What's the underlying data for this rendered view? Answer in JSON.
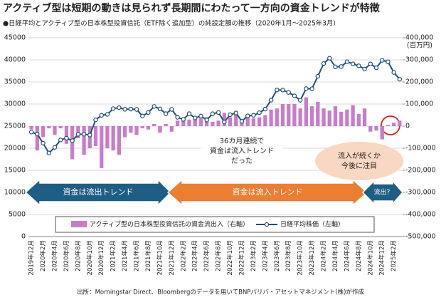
{
  "chart_data": {
    "type": "bar",
    "title": "アクティブ型は短期の動きは見られず長期間にわたって一方向の資金トレンドが特徴",
    "subtitle": "●日経平均とアクティブ型の日本株型投資信託（ETF除く追加型）の純設定額の推移（2020年1月～2025年3月）",
    "categories": [
      "2019年12月",
      null,
      "2020年2月",
      null,
      "2020年4月",
      null,
      "2020年6月",
      null,
      "2020年8月",
      null,
      "2020年10月",
      null,
      "2020年12月",
      null,
      "2021年2月",
      null,
      "2021年4月",
      null,
      "2021年6月",
      null,
      "2021年8月",
      null,
      "2021年10月",
      null,
      "2021年12月",
      null,
      "2022年2月",
      null,
      "2022年4月",
      null,
      "2022年6月",
      null,
      "2022年8月",
      null,
      "2022年10月",
      null,
      "2022年12月",
      null,
      "2023年2月",
      null,
      "2023年4月",
      null,
      "2023年6月",
      null,
      "2023年8月",
      null,
      "2023年10月",
      null,
      "2023年12月",
      null,
      "2024年2月",
      null,
      "2024年4月",
      null,
      "2024年6月",
      null,
      "2024年8月",
      null,
      "2024年10月",
      null,
      "2024年12月",
      null,
      "2025年2月",
      null
    ],
    "series": [
      {
        "name": "アクティブ型の日本株型投資信託の資金流出入（右軸）",
        "color": "#c77dc7",
        "type": "bar",
        "axis": "y2",
        "values": [
          -15000,
          -110000,
          -50000,
          -10000,
          -40000,
          -10000,
          -80000,
          -150000,
          -55000,
          -130000,
          -100000,
          -90000,
          -190000,
          -100000,
          -110000,
          -130000,
          -50000,
          -30000,
          -40000,
          -10000,
          -15000,
          10000,
          -30000,
          10000,
          -25000,
          25000,
          35000,
          30000,
          40000,
          35000,
          40000,
          20000,
          25000,
          60000,
          40000,
          55000,
          30000,
          50000,
          35000,
          40000,
          50000,
          75000,
          80000,
          100000,
          100000,
          100000,
          80000,
          130000,
          90000,
          110000,
          80000,
          70000,
          90000,
          65000,
          75000,
          95000,
          55000,
          80000,
          -25000,
          -20000,
          -60000,
          5000,
          15000,
          25000
        ]
      },
      {
        "name": "日経平均株価（左軸）",
        "color": "#1f4e79",
        "type": "line",
        "values": [
          23657,
          23205,
          21143,
          18917,
          20194,
          21878,
          22288,
          21710,
          23140,
          23185,
          22977,
          26434,
          27444,
          27663,
          28966,
          29179,
          28813,
          28860,
          28792,
          27284,
          28090,
          29453,
          28893,
          27822,
          28792,
          27002,
          26527,
          27821,
          26848,
          27280,
          26393,
          27802,
          28092,
          25937,
          27587,
          27969,
          26095,
          27327,
          27446,
          28041,
          28856,
          30888,
          33189,
          33172,
          32619,
          31858,
          30859,
          33487,
          33464,
          36287,
          39166,
          40369,
          38406,
          38488,
          39583,
          39102,
          38648,
          37920,
          39081,
          38208,
          39895,
          39572,
          37156,
          35618
        ]
      }
    ],
    "ylim": [
      0,
      45000
    ],
    "yticks": [
      0,
      5000,
      10000,
      15000,
      20000,
      25000,
      30000,
      35000,
      40000,
      45000
    ],
    "y2lim": [
      -500000,
      400000
    ],
    "y2ticks": [
      {
        "value": -500000,
        "label": "-500,000"
      },
      {
        "value": -400000,
        "label": "-400,000"
      },
      {
        "value": -300000,
        "label": "-300,000"
      },
      {
        "value": -200000,
        "label": "-200,000"
      },
      {
        "value": -100000,
        "label": "-100,000"
      },
      0,
      {
        "value": 100000,
        "label": "100,000"
      },
      {
        "value": 200000,
        "label": "200,000"
      },
      {
        "value": 300000,
        "label": "300,000"
      },
      {
        "value": 400000,
        "label": "400,000"
      }
    ],
    "y2unit": "(百万円)",
    "grid": true,
    "annotations": [
      [
        "36カ月連続で",
        "資金は流入トレンド",
        "だった"
      ],
      [
        "流入が続くか",
        "今後に注目"
      ]
    ],
    "periods": [
      "資金は流出トレンド",
      "資金は流入トレンド",
      "流出？"
    ],
    "source": "出所：Morningstar Direct、Bloombergのデータを用いてBNPパリバ・アセットマネジメント(株)が作成"
  }
}
